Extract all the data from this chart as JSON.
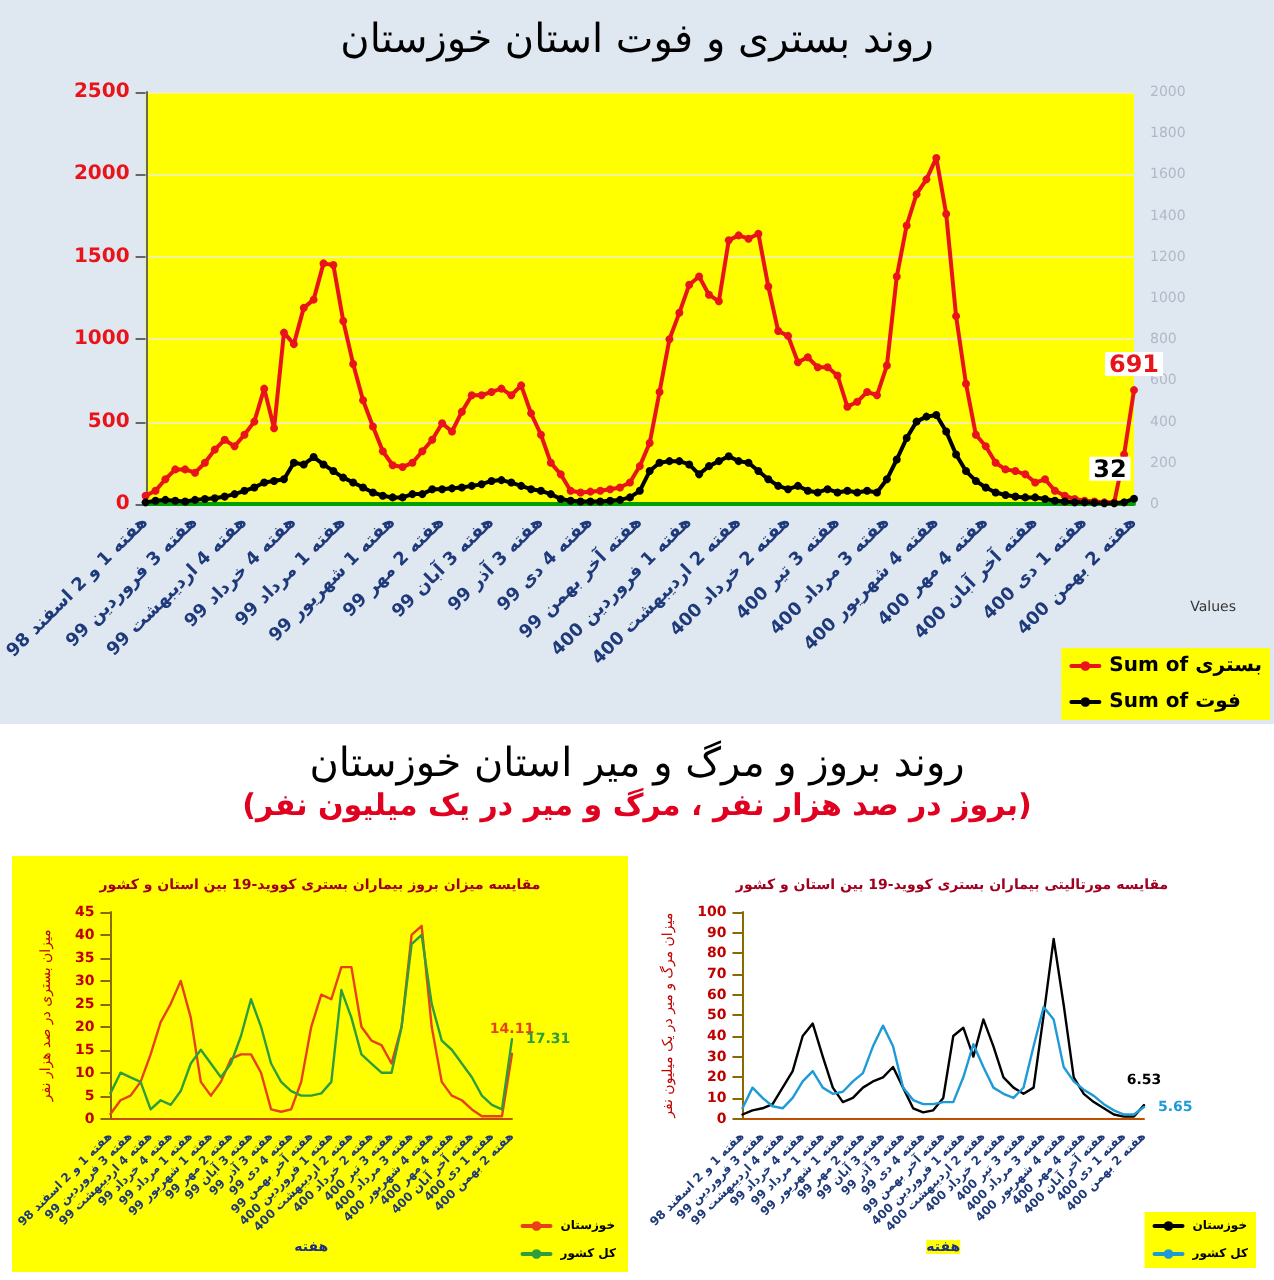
{
  "chart_data": [
    {
      "type": "line",
      "title": "روند بستری و فوت استان خوزستان",
      "categories": [
        "هفته 1 و 2 اسفند 98",
        null,
        null,
        null,
        null,
        "هفته 3 فروردین 99",
        null,
        null,
        null,
        null,
        "هفته 4 اردیبهشت 99",
        null,
        null,
        null,
        null,
        "هفته 4 خرداد 99",
        null,
        null,
        null,
        null,
        "هفته 1 مرداد 99",
        null,
        null,
        null,
        null,
        "هفته 1 شهریور 99",
        null,
        null,
        null,
        null,
        "هفته 2 مهر 99",
        null,
        null,
        null,
        null,
        "هفته 3 آبان 99",
        null,
        null,
        null,
        null,
        "هفته 3 آذر 99",
        null,
        null,
        null,
        null,
        "هفته 4 دی 99",
        null,
        null,
        null,
        null,
        "هفته آخر بهمن 99",
        null,
        null,
        null,
        null,
        "هفته 1 فروردین 400",
        null,
        null,
        null,
        null,
        "هفته 2 اردیبهشت 400",
        null,
        null,
        null,
        null,
        "هفته 2 خرداد 400",
        null,
        null,
        null,
        null,
        "هفته 3 تیر 400",
        null,
        null,
        null,
        null,
        "هفته 3 مرداد 400",
        null,
        null,
        null,
        null,
        "هفته 4 شهریور 400",
        null,
        null,
        null,
        null,
        "هفته 4 مهر 400",
        null,
        null,
        null,
        null,
        "هفته آخر آبان 400",
        null,
        null,
        null,
        null,
        "هفته 1 دی 400",
        null,
        null,
        null,
        null,
        "هفته 2 بهمن 400"
      ],
      "series": [
        {
          "name": "Sum of بستری",
          "color": "#e8141a",
          "values": [
            50,
            80,
            150,
            210,
            210,
            190,
            250,
            330,
            390,
            350,
            420,
            500,
            700,
            460,
            1040,
            970,
            1190,
            1240,
            1460,
            1450,
            1110,
            850,
            630,
            470,
            320,
            235,
            225,
            250,
            320,
            390,
            490,
            440,
            560,
            660,
            660,
            680,
            700,
            660,
            720,
            550,
            420,
            250,
            180,
            80,
            70,
            75,
            80,
            90,
            100,
            130,
            230,
            370,
            680,
            1000,
            1160,
            1330,
            1380,
            1270,
            1230,
            1600,
            1630,
            1610,
            1640,
            1320,
            1050,
            1020,
            860,
            890,
            830,
            830,
            780,
            590,
            620,
            680,
            660,
            840,
            1380,
            1690,
            1880,
            1970,
            2100,
            1760,
            1140,
            730,
            420,
            350,
            250,
            210,
            200,
            180,
            130,
            150,
            80,
            50,
            30,
            20,
            15,
            10,
            10,
            300,
            691
          ],
          "value_labels": [
            null,
            null,
            null,
            null,
            null,
            null,
            null,
            null,
            null,
            null,
            null,
            null,
            null,
            null,
            null,
            null,
            null,
            null,
            null,
            null,
            null,
            null,
            null,
            null,
            null,
            null,
            null,
            null,
            null,
            null,
            null,
            null,
            null,
            null,
            null,
            null,
            null,
            null,
            null,
            null,
            null,
            null,
            null,
            null,
            null,
            null,
            null,
            null,
            null,
            null,
            null,
            null,
            null,
            null,
            null,
            null,
            null,
            null,
            null,
            null,
            null,
            null,
            null,
            null,
            null,
            null,
            null,
            null,
            null,
            null,
            null,
            null,
            null,
            null,
            null,
            null,
            null,
            null,
            null,
            null,
            null,
            null,
            null,
            null,
            null,
            null,
            null,
            null,
            null,
            null,
            null,
            null,
            null,
            null,
            null,
            null,
            null,
            null,
            null,
            null,
            "691"
          ]
        },
        {
          "name": "Sum of فوت",
          "color": "#000000",
          "values": [
            10,
            20,
            25,
            20,
            15,
            25,
            30,
            35,
            45,
            60,
            80,
            100,
            130,
            140,
            150,
            250,
            240,
            285,
            240,
            200,
            160,
            130,
            100,
            70,
            50,
            40,
            40,
            60,
            60,
            90,
            90,
            95,
            100,
            110,
            120,
            140,
            145,
            130,
            110,
            90,
            80,
            60,
            30,
            20,
            15,
            15,
            15,
            20,
            25,
            40,
            80,
            200,
            250,
            260,
            260,
            240,
            180,
            230,
            260,
            290,
            260,
            250,
            200,
            150,
            110,
            90,
            110,
            80,
            70,
            90,
            70,
            80,
            70,
            80,
            70,
            150,
            270,
            400,
            500,
            530,
            540,
            440,
            300,
            200,
            140,
            100,
            70,
            55,
            45,
            40,
            40,
            30,
            20,
            15,
            10,
            10,
            8,
            5,
            5,
            10,
            32
          ],
          "value_labels": [
            null,
            null,
            null,
            null,
            null,
            null,
            null,
            null,
            null,
            null,
            null,
            null,
            null,
            null,
            null,
            null,
            null,
            null,
            null,
            null,
            null,
            null,
            null,
            null,
            null,
            null,
            null,
            null,
            null,
            null,
            null,
            null,
            null,
            null,
            null,
            null,
            null,
            null,
            null,
            null,
            null,
            null,
            null,
            null,
            null,
            null,
            null,
            null,
            null,
            null,
            null,
            null,
            null,
            null,
            null,
            null,
            null,
            null,
            null,
            null,
            null,
            null,
            null,
            null,
            null,
            null,
            null,
            null,
            null,
            null,
            null,
            null,
            null,
            null,
            null,
            null,
            null,
            null,
            null,
            null,
            null,
            null,
            null,
            null,
            null,
            null,
            null,
            null,
            null,
            null,
            null,
            null,
            null,
            null,
            null,
            null,
            null,
            null,
            null,
            null,
            "32"
          ]
        }
      ],
      "ylim": [
        0,
        2500
      ],
      "yticks": [
        0,
        500,
        1000,
        1500,
        2000,
        2500
      ],
      "y2lim": [
        0,
        2000
      ],
      "y2ticks": [
        0,
        200,
        400,
        600,
        800,
        1000,
        1200,
        1400,
        1600,
        1800,
        2000
      ],
      "grid": "y",
      "marker": "circle",
      "legend": "bottom right",
      "legend_title": "Values"
    },
    {
      "type": "other",
      "title": "روند بروز و مرگ و میر استان خوزستان",
      "subtitle": "(بروز در صد هزار نفر ، مرگ و میر در یک میلیون نفر)"
    },
    {
      "type": "line",
      "title": "مقایسه میزان بروز بیماران بستری کووید-19 بین استان و کشور",
      "xlabel": "هفته",
      "ylabel": "میزان بستری در صد هزار نفر",
      "categories": [
        "هفته 1 و 2 اسفند 98",
        null,
        "هفته 3 فروردین 99",
        null,
        "هفته 4 اردیبهشت 99",
        null,
        "هفته 4 خرداد 99",
        null,
        "هفته 1 مرداد 99",
        null,
        "هفته 1 شهریور 99",
        null,
        "هفته 2 مهر 99",
        null,
        "هفته 3 آبان 99",
        null,
        "هفته 3 آذر 99",
        null,
        "هفته 4 دی 99",
        null,
        "هفته آخر بهمن 99",
        null,
        "هفته 1 فروردین 400",
        null,
        "هفته 2 اردیبهشت 400",
        null,
        "هفته 2 خرداد 400",
        null,
        "هفته 3 تیر 400",
        null,
        "هفته 3 مرداد 400",
        null,
        "هفته 4 شهریور 400",
        null,
        "هفته 4 مهر 400",
        null,
        "هفته آخر آبان 400",
        null,
        "هفته 1 دی 400",
        null,
        "هفته 2 بهمن 400"
      ],
      "series": [
        {
          "name": "خوزستان",
          "color": "#e8401a",
          "values": [
            1,
            4,
            5,
            8,
            14,
            21,
            25,
            30,
            22,
            8,
            5,
            8,
            13,
            14,
            14,
            10,
            2,
            1.5,
            2,
            8,
            20,
            27,
            26,
            33,
            33,
            20,
            17,
            16,
            12,
            20,
            40,
            42,
            20,
            8,
            5,
            4,
            2,
            0.5,
            0.5,
            0.5,
            14.11
          ],
          "value_labels": [
            null,
            null,
            null,
            null,
            null,
            null,
            null,
            null,
            null,
            null,
            null,
            null,
            null,
            null,
            null,
            null,
            null,
            null,
            null,
            null,
            null,
            null,
            null,
            null,
            null,
            null,
            null,
            null,
            null,
            null,
            null,
            null,
            null,
            null,
            null,
            null,
            null,
            null,
            null,
            null,
            "14.11"
          ]
        },
        {
          "name": "کل کشور",
          "color": "#2e9e3c",
          "values": [
            5.5,
            10,
            9,
            8,
            2,
            4,
            3,
            6,
            12,
            15,
            12,
            9,
            12,
            18,
            26,
            20,
            12,
            8,
            6,
            5,
            5,
            5.5,
            8,
            28,
            22,
            14,
            12,
            10,
            10,
            20,
            38,
            40,
            25,
            17,
            15,
            12,
            9,
            5,
            3,
            2,
            17.31
          ],
          "value_labels": [
            null,
            null,
            null,
            null,
            null,
            null,
            null,
            null,
            null,
            null,
            null,
            null,
            null,
            null,
            null,
            null,
            null,
            null,
            null,
            null,
            null,
            null,
            null,
            null,
            null,
            null,
            null,
            null,
            null,
            null,
            null,
            null,
            null,
            null,
            null,
            null,
            null,
            null,
            null,
            null,
            "17.31"
          ]
        }
      ],
      "ylim": [
        0,
        45
      ],
      "yticks": [
        0,
        5,
        10,
        15,
        20,
        25,
        30,
        35,
        40,
        45
      ],
      "legend": "bottom right"
    },
    {
      "type": "line",
      "title": "مقایسه مورتالیتی بیماران بستری کووید-19 بین استان و کشور",
      "xlabel": "هفته",
      "ylabel": "میزان مرگ و میر در یک میلیون نفر",
      "categories": [
        "هفته 1 و 2 اسفند 98",
        null,
        "هفته 3 فروردین 99",
        null,
        "هفته 4 اردیبهشت 99",
        null,
        "هفته 4 خرداد 99",
        null,
        "هفته 1 مرداد 99",
        null,
        "هفته 1 شهریور 99",
        null,
        "هفته 2 مهر 99",
        null,
        "هفته 3 آبان 99",
        null,
        "هفته 3 آذر 99",
        null,
        "هفته 4 دی 99",
        null,
        "هفته آخر بهمن 99",
        null,
        "هفته 1 فروردین 400",
        null,
        "هفته 2 اردیبهشت 400",
        null,
        "هفته 2 خرداد 400",
        null,
        "هفته 3 تیر 400",
        null,
        "هفته 3 مرداد 400",
        null,
        "هفته 4 شهریور 400",
        null,
        "هفته 4 مهر 400",
        null,
        "هفته آخر آبان 400",
        null,
        "هفته 1 دی 400",
        null,
        "هفته 2 بهمن 400"
      ],
      "series": [
        {
          "name": "خوزستان",
          "color": "#000000",
          "values": [
            2,
            4,
            5,
            7,
            15,
            23,
            40,
            46,
            30,
            15,
            8,
            10,
            15,
            18,
            20,
            25,
            15,
            5,
            3,
            4,
            10,
            40,
            44,
            30,
            48,
            35,
            20,
            15,
            12,
            15,
            50,
            87,
            55,
            20,
            12,
            8,
            5,
            2,
            1,
            1,
            6.53
          ],
          "value_labels": [
            null,
            null,
            null,
            null,
            null,
            null,
            null,
            null,
            null,
            null,
            null,
            null,
            null,
            null,
            null,
            null,
            null,
            null,
            null,
            null,
            null,
            null,
            null,
            null,
            null,
            null,
            null,
            null,
            null,
            null,
            null,
            null,
            null,
            null,
            null,
            null,
            null,
            null,
            null,
            null,
            "6.53"
          ]
        },
        {
          "name": "کل کشور",
          "color": "#1e9bd7",
          "values": [
            5,
            15,
            10,
            6,
            5,
            10,
            18,
            23,
            15,
            12,
            13,
            18,
            22,
            35,
            45,
            35,
            15,
            9,
            7,
            7,
            8,
            8,
            20,
            36,
            25,
            15,
            12,
            10,
            15,
            35,
            54,
            48,
            25,
            18,
            14,
            11,
            7,
            4,
            2,
            2,
            5.65
          ],
          "value_labels": [
            null,
            null,
            null,
            null,
            null,
            null,
            null,
            null,
            null,
            null,
            null,
            null,
            null,
            null,
            null,
            null,
            null,
            null,
            null,
            null,
            null,
            null,
            null,
            null,
            null,
            null,
            null,
            null,
            null,
            null,
            null,
            null,
            null,
            null,
            null,
            null,
            null,
            null,
            null,
            null,
            "5.65"
          ]
        }
      ],
      "ylim": [
        0,
        100
      ],
      "yticks": [
        0,
        10,
        20,
        30,
        40,
        50,
        60,
        70,
        80,
        90,
        100
      ],
      "legend": "bottom right"
    }
  ]
}
